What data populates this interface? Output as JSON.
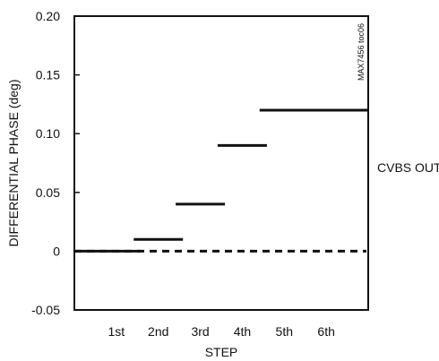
{
  "chart_data": {
    "type": "line",
    "title": "",
    "xlabel": "STEP",
    "ylabel": "DIFFERENTIAL PHASE (deg)",
    "categories": [
      "1st",
      "2nd",
      "3rd",
      "4th",
      "5th",
      "6th"
    ],
    "ylim": [
      -0.05,
      0.2
    ],
    "yticks": [
      -0.05,
      0,
      0.05,
      0.1,
      0.15,
      0.2
    ],
    "ytick_labels": [
      "-0.05",
      "0",
      "0.05",
      "0.10",
      "0.15",
      "0.20"
    ],
    "grid": false,
    "series": [
      {
        "name": "CVBS OUT",
        "style": "step",
        "values": [
          0,
          0.01,
          0.04,
          0.09,
          0.12,
          0.12
        ]
      }
    ],
    "reference_line": {
      "value": 0,
      "style": "dashed"
    },
    "annotations": {
      "series_label": "CVBS OUT",
      "figure_id": "MAX7456 toc06"
    }
  }
}
